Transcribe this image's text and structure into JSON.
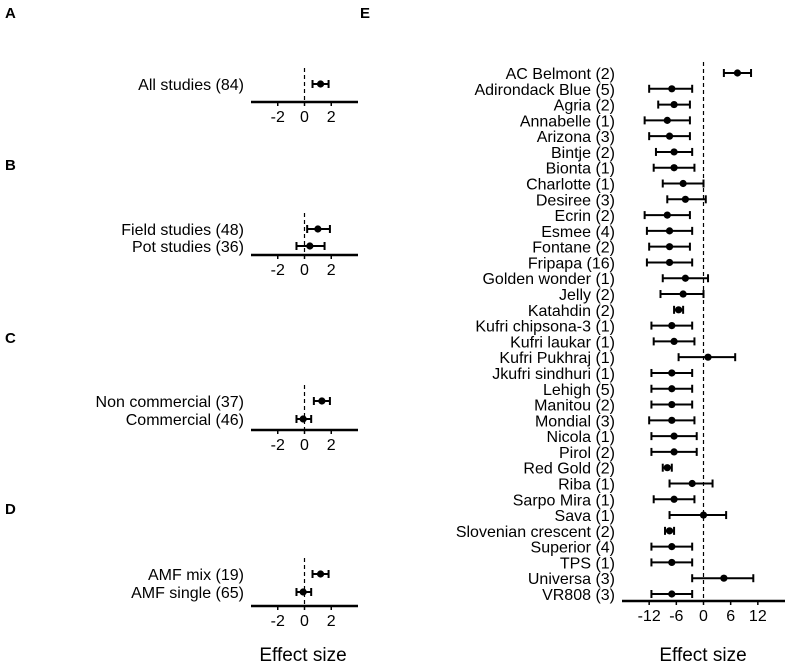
{
  "xlabel_left": "Effect size",
  "xlabel_right": "Effect size",
  "chart_data": [
    {
      "type": "forest",
      "panel": "A",
      "xlabel": "",
      "xlim": [
        -4,
        4
      ],
      "xticks": [
        -2,
        0,
        2
      ],
      "reference_line": 0,
      "categories": [
        "All studies (84)"
      ],
      "estimates": [
        1.2
      ],
      "ci_low": [
        0.6
      ],
      "ci_high": [
        1.8
      ]
    },
    {
      "type": "forest",
      "panel": "B",
      "xlabel": "",
      "xlim": [
        -4,
        4
      ],
      "xticks": [
        -2,
        0,
        2
      ],
      "reference_line": 0,
      "categories": [
        "Field studies (48)",
        "Pot studies (36)"
      ],
      "estimates": [
        1.0,
        0.4
      ],
      "ci_low": [
        0.2,
        -0.6
      ],
      "ci_high": [
        1.9,
        1.5
      ]
    },
    {
      "type": "forest",
      "panel": "C",
      "xlabel": "",
      "xlim": [
        -4,
        4
      ],
      "xticks": [
        -2,
        0,
        2
      ],
      "reference_line": 0,
      "categories": [
        "Non commercial (37)",
        "Commercial (46)"
      ],
      "estimates": [
        1.3,
        -0.1
      ],
      "ci_low": [
        0.7,
        -0.6
      ],
      "ci_high": [
        1.9,
        0.5
      ]
    },
    {
      "type": "forest",
      "panel": "D",
      "xlabel": "",
      "xlim": [
        -4,
        4
      ],
      "xticks": [
        -2,
        0,
        2
      ],
      "reference_line": 0,
      "categories": [
        "AMF mix (19)",
        "AMF single (65)"
      ],
      "estimates": [
        1.2,
        -0.1
      ],
      "ci_low": [
        0.6,
        -0.6
      ],
      "ci_high": [
        1.8,
        0.5
      ]
    },
    {
      "type": "forest",
      "panel": "E",
      "xlabel": "",
      "xlim": [
        -18,
        18
      ],
      "xticks": [
        -12,
        -6,
        0,
        6,
        12
      ],
      "reference_line": 0,
      "categories": [
        "AC Belmont (2)",
        "Adirondack Blue (5)",
        "Agria (2)",
        "Annabelle (1)",
        "Arizona (3)",
        "Bintje (2)",
        "Bionta (1)",
        "Charlotte (1)",
        "Desiree (3)",
        "Ecrin (2)",
        "Esmee (4)",
        "Fontane (2)",
        "Fripapa (16)",
        "Golden wonder (1)",
        "Jelly (2)",
        "Katahdin (2)",
        "Kufri chipsona-3 (1)",
        "Kufri laukar (1)",
        "Kufri Pukhraj (1)",
        "Jkufri sindhuri (1)",
        "Lehigh (5)",
        "Manitou (2)",
        "Mondial (3)",
        "Nicola (1)",
        "Pirol (2)",
        "Red Gold (2)",
        "Riba (1)",
        "Sarpo Mira (1)",
        "Sava (1)",
        "Slovenian crescent (2)",
        "Superior (4)",
        "TPS (1)",
        "Universa (3)",
        "VR808 (3)"
      ],
      "estimates": [
        7.5,
        -7,
        -6.5,
        -8,
        -7.5,
        -6.5,
        -6.5,
        -4.5,
        -4,
        -8,
        -7.5,
        -7.5,
        -7.5,
        -4,
        -4.5,
        -5.5,
        -7,
        -6.5,
        1,
        -7,
        -7,
        -7,
        -7,
        -6.5,
        -6.5,
        -8,
        -2.5,
        -6.5,
        0,
        -7.5,
        -7,
        -7,
        4.5,
        -7
      ],
      "ci_low": [
        4.5,
        -12,
        -10,
        -13,
        -12,
        -10.5,
        -11,
        -9,
        -8,
        -13,
        -12.5,
        -12,
        -12.5,
        -9,
        -9.5,
        -6.5,
        -11.5,
        -11,
        -5.5,
        -11.5,
        -11.5,
        -11.5,
        -12,
        -11.5,
        -11.5,
        -9,
        -7.5,
        -11,
        -7.5,
        -8.5,
        -11.5,
        -11.5,
        -2.5,
        -11.5
      ],
      "ci_high": [
        10.5,
        -2.5,
        -3,
        -3,
        -3,
        -2.5,
        -2,
        0,
        0.5,
        -3,
        -2.5,
        -3,
        -2.5,
        1,
        0,
        -4.5,
        -2.5,
        -2,
        7,
        -2.5,
        -2.5,
        -2.5,
        -2,
        -1.5,
        -1.5,
        -7,
        2,
        -2,
        5,
        -6.5,
        -2.5,
        -2.5,
        11,
        -2.5
      ]
    }
  ]
}
